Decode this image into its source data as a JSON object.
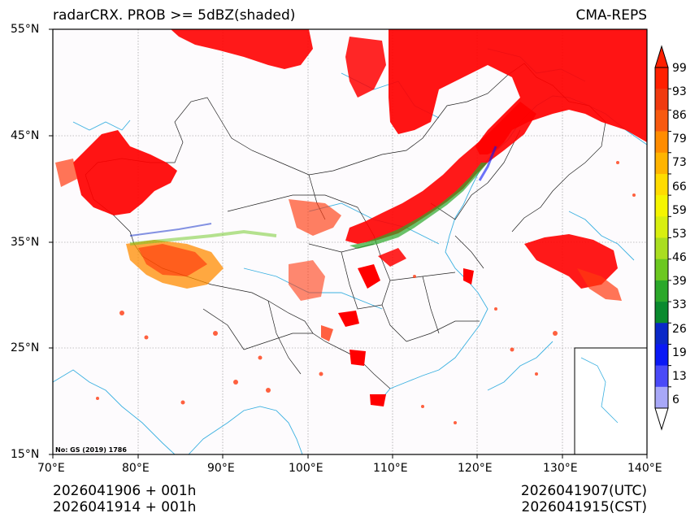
{
  "title": {
    "left": "radarCRX. PROB >= 5dBZ(shaded)",
    "right": "CMA-REPS"
  },
  "axes": {
    "lat_labels": [
      "55°N",
      "45°N",
      "35°N",
      "25°N",
      "15°N"
    ],
    "lon_labels": [
      "70°E",
      "80°E",
      "90°E",
      "100°E",
      "110°E",
      "120°E",
      "130°E",
      "140°E"
    ]
  },
  "map": {
    "extent": {
      "lon": [
        70,
        140
      ],
      "lat": [
        15,
        55
      ]
    },
    "note": "No: GS (2019) 1786",
    "colors": {
      "precip_core": "#ff0000",
      "precip_edge": "#ff6600",
      "coast": "#3ab0e0",
      "border": "#222222",
      "grid": "#888888"
    }
  },
  "colorbar": {
    "labels": [
      "99",
      "93",
      "86",
      "79",
      "73",
      "66",
      "59",
      "53",
      "46",
      "39",
      "33",
      "26",
      "19",
      "13",
      "6"
    ],
    "colors": [
      "#ff2000",
      "#f03a10",
      "#f85a10",
      "#ff8c00",
      "#ffb400",
      "#ffdc00",
      "#f5f500",
      "#d8ef10",
      "#aade20",
      "#6cc820",
      "#2ba82a",
      "#0a8a2e",
      "#0a28c8",
      "#0a18f5",
      "#4a4af8",
      "#a8a8f8"
    ],
    "top_arrow_color": "#ff2000",
    "bottom_arrow_color": "#ffffff"
  },
  "footer": {
    "left_line1": "2026041906  +  001h",
    "left_line2": "2026041914  +  001h",
    "right_line1": "2026041907(UTC)",
    "right_line2": "2026041915(CST)"
  }
}
